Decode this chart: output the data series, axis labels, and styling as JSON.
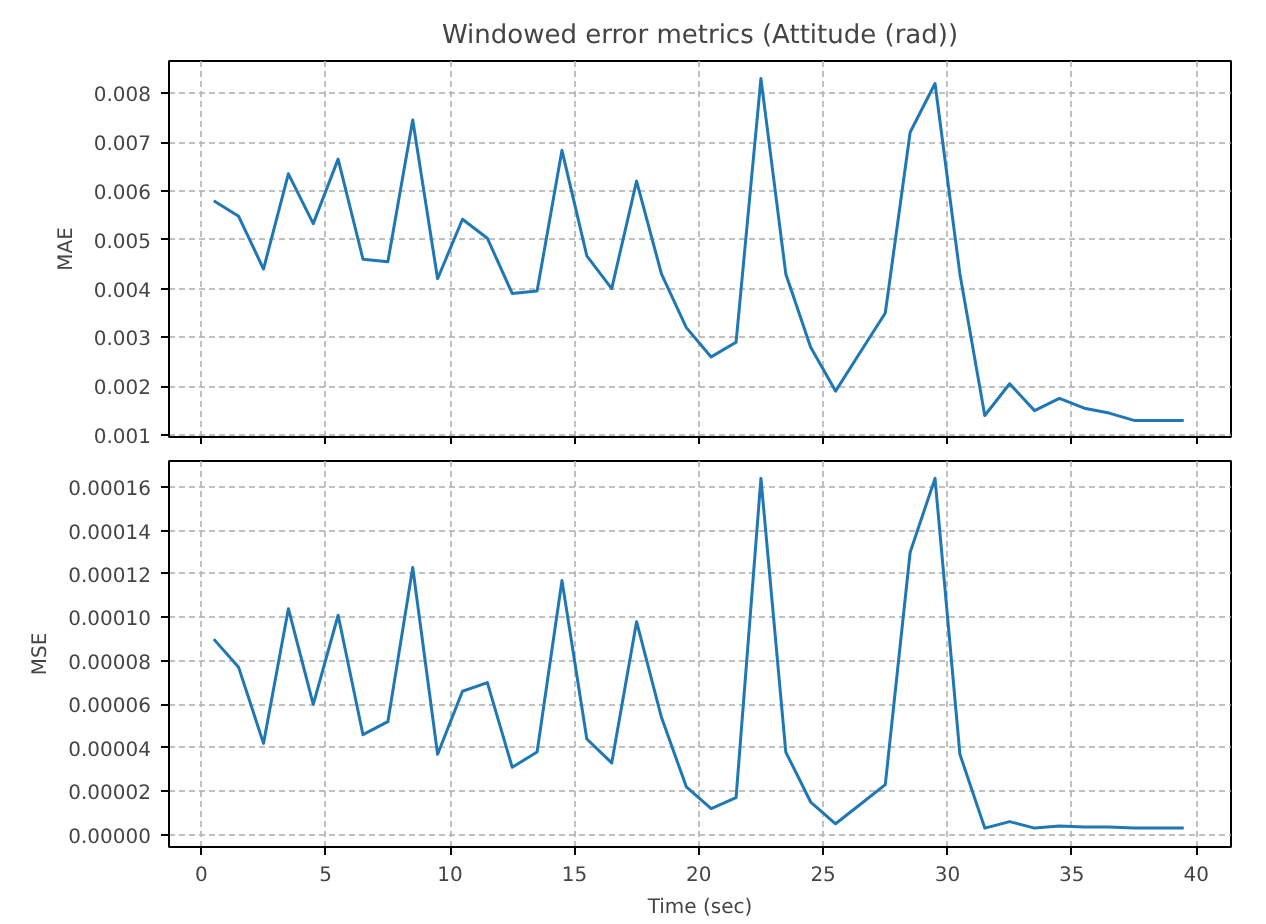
{
  "chart_data": [
    {
      "type": "line",
      "title": "Windowed error metrics (Attitude (rad))",
      "ylabel": "MAE",
      "x": [
        0.5,
        1.5,
        2.5,
        3.5,
        4.5,
        5.5,
        6.5,
        7.5,
        8.5,
        9.5,
        10.5,
        11.5,
        12.5,
        13.5,
        14.5,
        15.5,
        16.5,
        17.5,
        18.5,
        19.5,
        20.5,
        21.5,
        22.5,
        23.5,
        24.5,
        25.5,
        26.5,
        27.5,
        28.5,
        29.5,
        30.5,
        31.5,
        32.5,
        33.5,
        34.5,
        35.5,
        36.5,
        37.5,
        38.5,
        39.5
      ],
      "series": [
        {
          "color": "#1f77b4",
          "values": [
            0.0058,
            0.00548,
            0.0044,
            0.00635,
            0.00533,
            0.00665,
            0.0046,
            0.00455,
            0.00745,
            0.0042,
            0.00542,
            0.00503,
            0.0039,
            0.00395,
            0.00683,
            0.00467,
            0.004,
            0.0062,
            0.0043,
            0.0032,
            0.0026,
            0.0029,
            0.0083,
            0.0043,
            0.0028,
            0.0019,
            0.0027,
            0.0035,
            0.0072,
            0.0082,
            0.0043,
            0.0014,
            0.00205,
            0.0015,
            0.00175,
            0.00155,
            0.00145,
            0.0013,
            0.0013,
            0.0013
          ]
        }
      ],
      "xlim": [
        -1.3,
        41.4
      ],
      "xticks": [
        0,
        5,
        10,
        15,
        20,
        25,
        30,
        35,
        40
      ],
      "ylim": [
        0.00096,
        0.00866
      ],
      "yticks": [
        0.001,
        0.002,
        0.003,
        0.004,
        0.005,
        0.006,
        0.007,
        0.008
      ],
      "grid": true,
      "tick_labels": "y"
    },
    {
      "type": "line",
      "xlabel": "Time (sec)",
      "ylabel": "MSE",
      "x": [
        0.5,
        1.5,
        2.5,
        3.5,
        4.5,
        5.5,
        6.5,
        7.5,
        8.5,
        9.5,
        10.5,
        11.5,
        12.5,
        13.5,
        14.5,
        15.5,
        16.5,
        17.5,
        18.5,
        19.5,
        20.5,
        21.5,
        22.5,
        23.5,
        24.5,
        25.5,
        26.5,
        27.5,
        28.5,
        29.5,
        30.5,
        31.5,
        32.5,
        33.5,
        34.5,
        35.5,
        36.5,
        37.5,
        38.5,
        39.5
      ],
      "series": [
        {
          "color": "#1f77b4",
          "values": [
            9e-05,
            7.7e-05,
            4.2e-05,
            0.000104,
            6e-05,
            0.000101,
            4.6e-05,
            5.2e-05,
            0.000123,
            3.7e-05,
            6.6e-05,
            7e-05,
            3.1e-05,
            3.8e-05,
            0.000117,
            4.4e-05,
            3.3e-05,
            9.8e-05,
            5.4e-05,
            2.2e-05,
            1.2e-05,
            1.7e-05,
            0.000164,
            3.8e-05,
            1.5e-05,
            5e-06,
            1.4e-05,
            2.3e-05,
            0.00013,
            0.000164,
            3.7e-05,
            3e-06,
            6e-06,
            3e-06,
            4e-06,
            3.5e-06,
            3.5e-06,
            3e-06,
            3e-06,
            3e-06
          ]
        }
      ],
      "xlim": [
        -1.3,
        41.4
      ],
      "xticks": [
        0,
        5,
        10,
        15,
        20,
        25,
        30,
        35,
        40
      ],
      "ylim": [
        -5.7e-06,
        0.000172
      ],
      "yticks": [
        {
          "value": 0,
          "label": "0.00000"
        },
        {
          "value": 2e-05,
          "label": "0.00002"
        },
        {
          "value": 4e-05,
          "label": "0.00004"
        },
        {
          "value": 6e-05,
          "label": "0.00006"
        },
        {
          "value": 8e-05,
          "label": "0.00008"
        },
        {
          "value": 0.0001,
          "label": "0.00010"
        },
        {
          "value": 0.00012,
          "label": "0.00012"
        },
        {
          "value": 0.00014,
          "label": "0.00014"
        },
        {
          "value": 0.00016,
          "label": "0.00016"
        }
      ],
      "grid": true
    }
  ]
}
